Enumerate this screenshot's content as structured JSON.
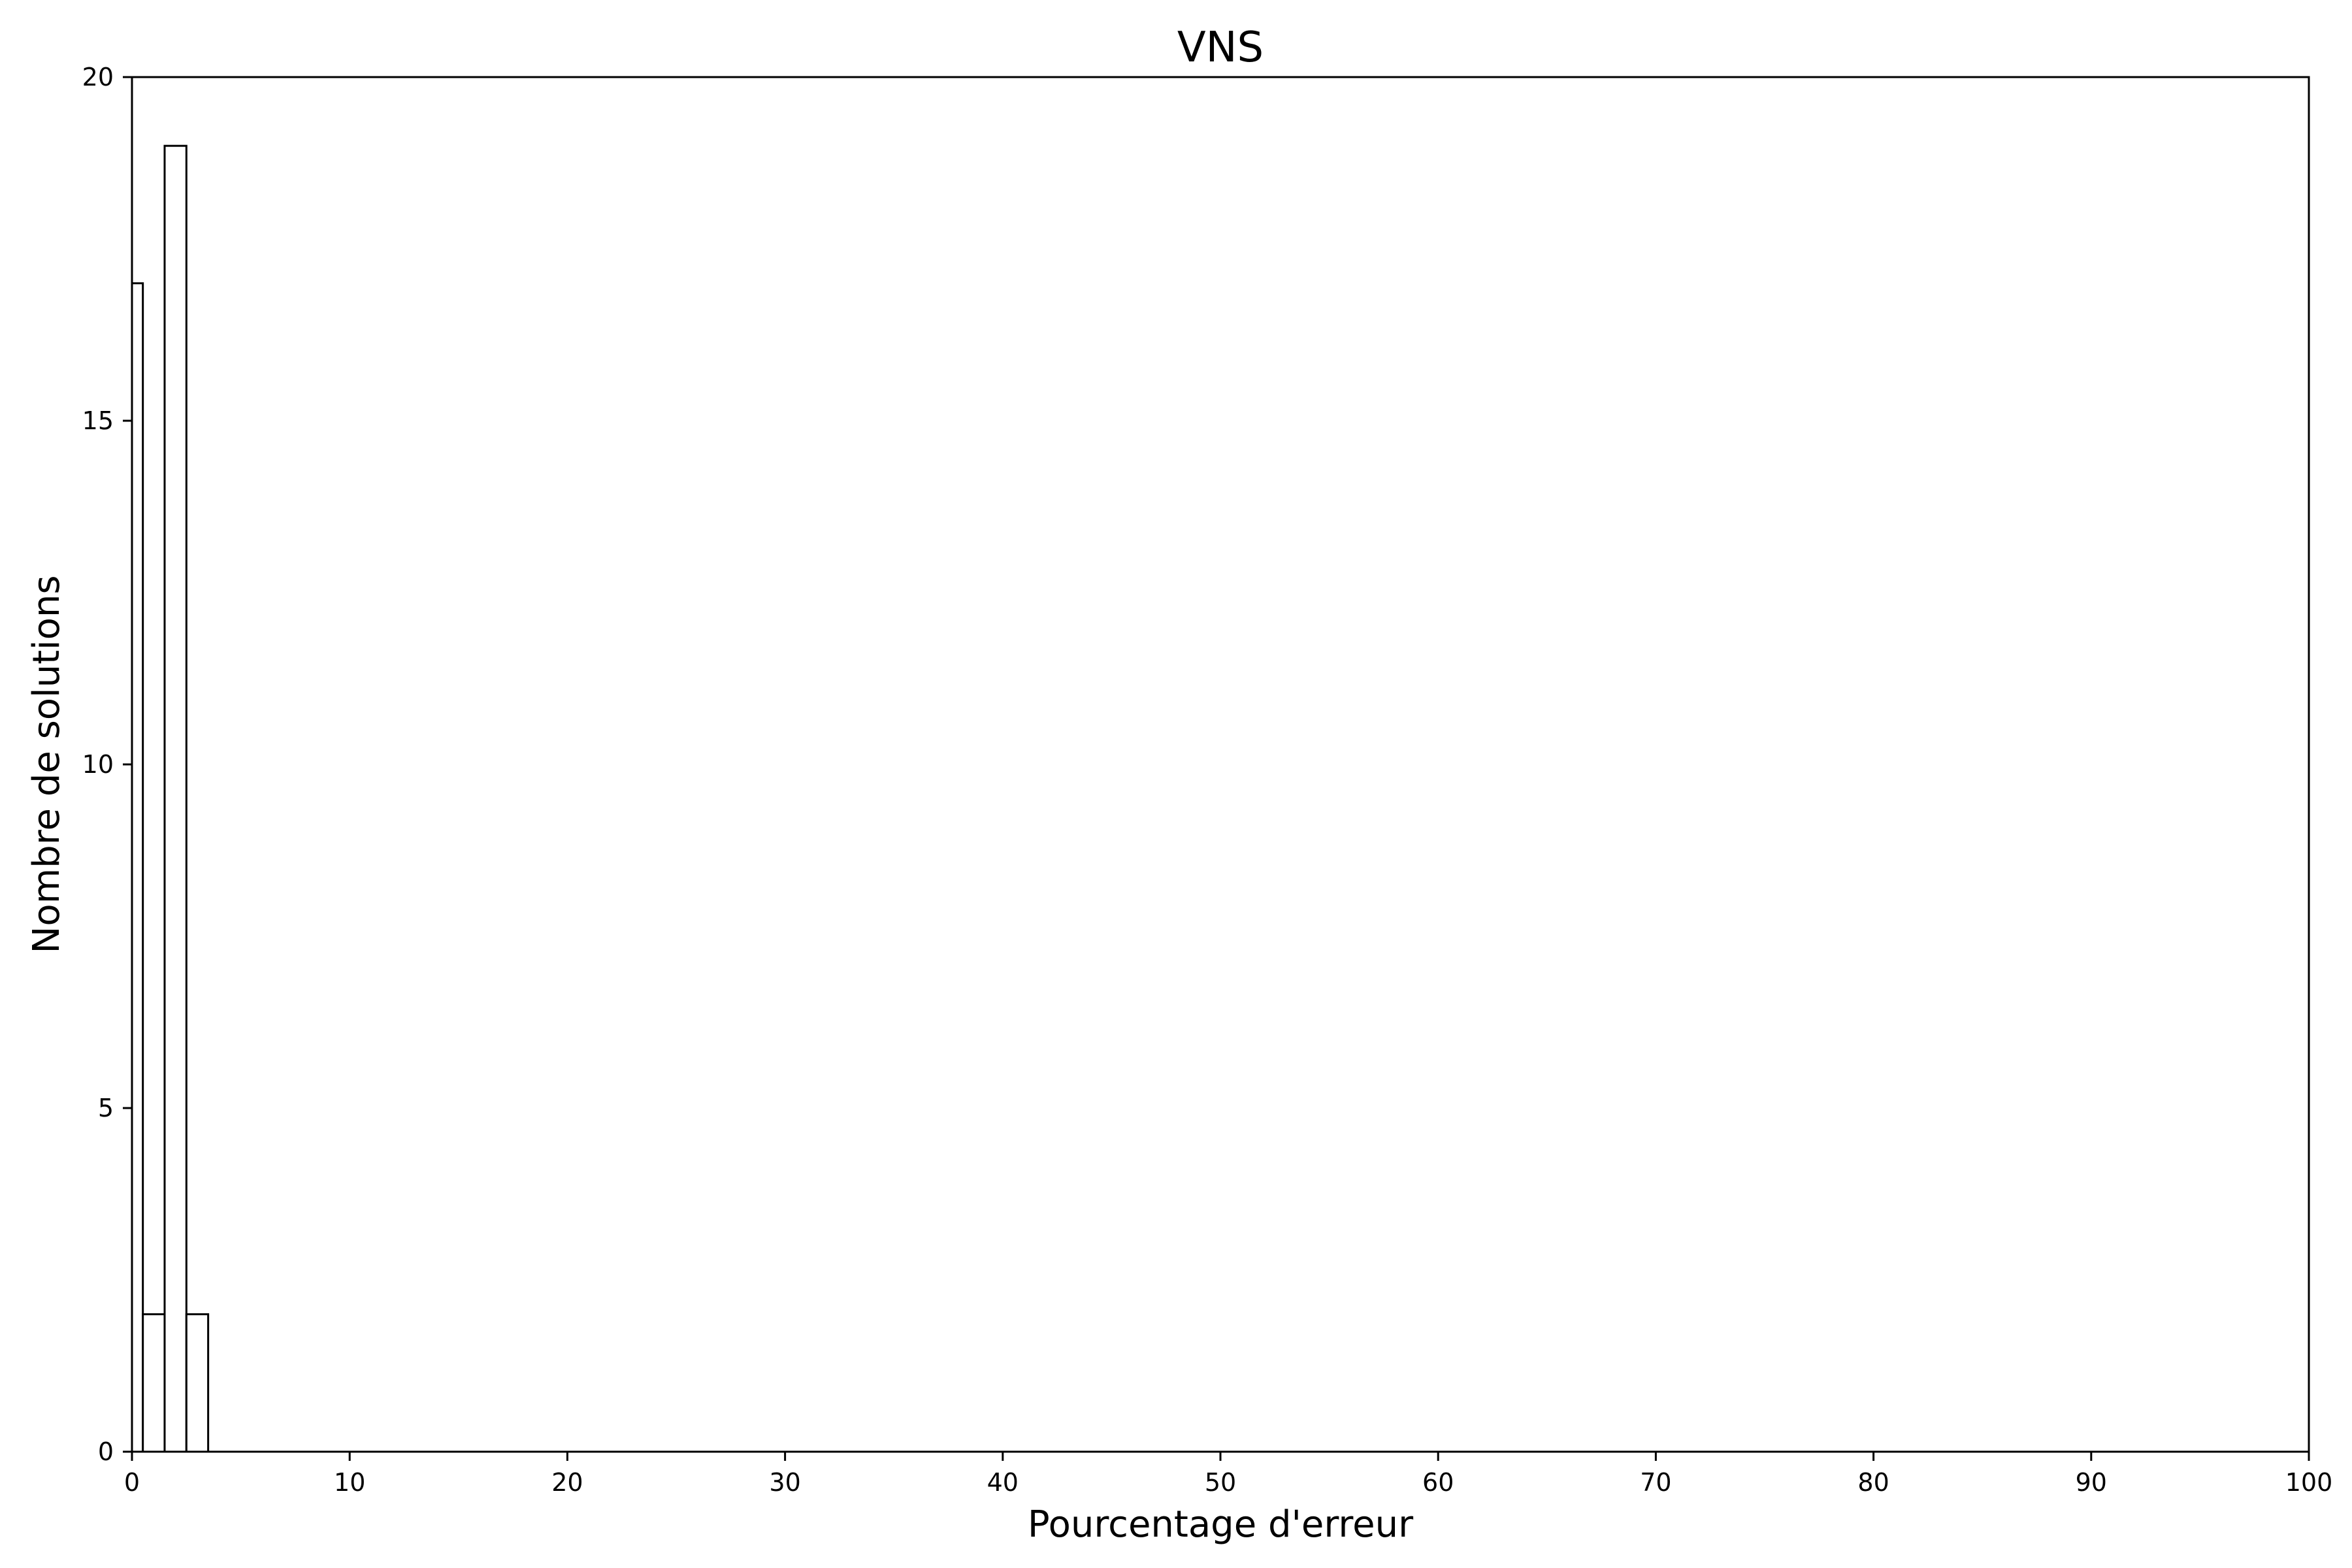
{
  "chart_data": {
    "type": "bar",
    "title": "VNS",
    "xlabel": "Pourcentage d'erreur",
    "ylabel": "Nombre de solutions",
    "xlim": [
      0,
      100
    ],
    "ylim": [
      0,
      20
    ],
    "xticks": [
      0,
      10,
      20,
      30,
      40,
      50,
      60,
      70,
      80,
      90,
      100
    ],
    "yticks": [
      0,
      5,
      10,
      15,
      20
    ],
    "grid": false,
    "bins": [
      {
        "x0": 0.0,
        "x1": 0.5,
        "count": 17
      },
      {
        "x0": 0.5,
        "x1": 1.5,
        "count": 2
      },
      {
        "x0": 1.5,
        "x1": 2.5,
        "count": 19
      },
      {
        "x0": 2.5,
        "x1": 3.5,
        "count": 2
      }
    ],
    "colors": {
      "bar_fill": "#ffffff",
      "bar_edge": "#000000",
      "axis": "#000000"
    }
  }
}
